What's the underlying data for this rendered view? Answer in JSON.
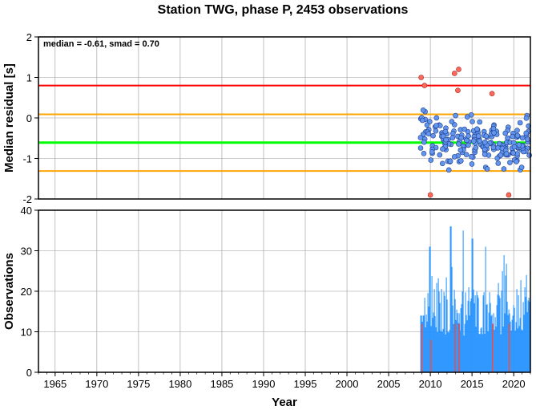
{
  "chart_data": {
    "type": "scatter",
    "title": "Station TWG, phase P, 2453 observations",
    "xlabel": "Year",
    "xlim": [
      1963,
      2022
    ],
    "xticks": [
      "1965",
      "1970",
      "1975",
      "1980",
      "1985",
      "1990",
      "1995",
      "2000",
      "2005",
      "2010",
      "2015",
      "2020"
    ],
    "grid": true,
    "panels": [
      {
        "type": "scatter",
        "ylabel": "Median residual [s]",
        "ylim": [
          -2,
          2
        ],
        "yticks": [
          "-2",
          "-1",
          "0",
          "1",
          "2"
        ],
        "annotation": "median = -0.61, smad = 0.70",
        "reference_lines": [
          {
            "value": 0.8,
            "color": "#ff0000"
          },
          {
            "value": 0.09,
            "color": "#ffa500"
          },
          {
            "value": -0.61,
            "color": "#00ff00"
          },
          {
            "value": -1.31,
            "color": "#ffa500"
          }
        ],
        "point_color": "#6495ed",
        "outlier_color": "#ff6a5a",
        "outliers": [
          {
            "x": 2008.9,
            "y": 1.0
          },
          {
            "x": 2009.3,
            "y": 0.8
          },
          {
            "x": 2010.0,
            "y": -1.9
          },
          {
            "x": 2012.9,
            "y": 1.1
          },
          {
            "x": 2013.4,
            "y": 1.2
          },
          {
            "x": 2013.3,
            "y": 0.68
          },
          {
            "x": 2017.4,
            "y": 0.6
          },
          {
            "x": 2019.4,
            "y": -1.9
          }
        ]
      },
      {
        "type": "bar",
        "ylabel": "Observations",
        "ylim": [
          0,
          40
        ],
        "yticks": [
          "0",
          "10",
          "20",
          "30",
          "40"
        ],
        "bar_color": "#1e90ff",
        "highlight_color": "#e8504a",
        "data_range": [
          2008.8,
          2021.9
        ],
        "peak_values": [
          {
            "x": 2009.9,
            "y": 31
          },
          {
            "x": 2012.4,
            "y": 36
          },
          {
            "x": 2013.9,
            "y": 35
          },
          {
            "x": 2015.0,
            "y": 33
          },
          {
            "x": 2016.6,
            "y": 31
          },
          {
            "x": 2021.5,
            "y": 24
          }
        ],
        "highlight_bars": [
          {
            "x": 2008.9,
            "y": 12
          },
          {
            "x": 2010.0,
            "y": 8
          },
          {
            "x": 2012.9,
            "y": 12
          },
          {
            "x": 2013.4,
            "y": 12
          },
          {
            "x": 2017.4,
            "y": 12
          },
          {
            "x": 2019.4,
            "y": 12
          }
        ]
      }
    ]
  }
}
